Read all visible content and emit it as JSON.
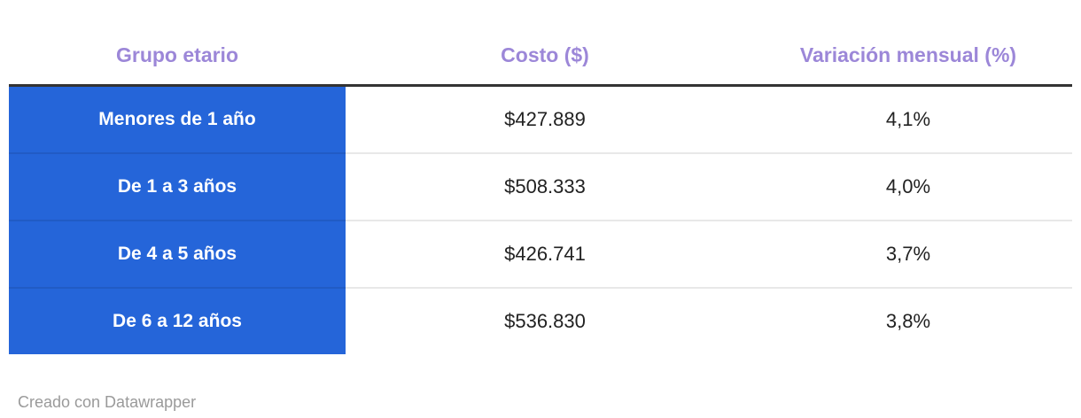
{
  "chart_data": {
    "type": "table",
    "columns": [
      "Grupo etario",
      "Costo ($)",
      "Variación mensual (%)"
    ],
    "rows": [
      [
        "Menores de 1 año",
        "$427.889",
        "4,1%"
      ],
      [
        "De 1 a 3 años",
        "$508.333",
        "4,0%"
      ],
      [
        "De 4 a 5 años",
        "$426.741",
        "3,7%"
      ],
      [
        "De 6 a 12 años",
        "$536.830",
        "3,8%"
      ]
    ],
    "legend_position": "none",
    "grid": "row-separators"
  },
  "footer": {
    "credit": "Creado con Datawrapper"
  },
  "colors": {
    "accent_purple": "#9c87d8",
    "row_label_blue": "#2565d9",
    "header_border": "#333333",
    "body_text": "#222222",
    "credit_gray": "#9a9a9a"
  }
}
